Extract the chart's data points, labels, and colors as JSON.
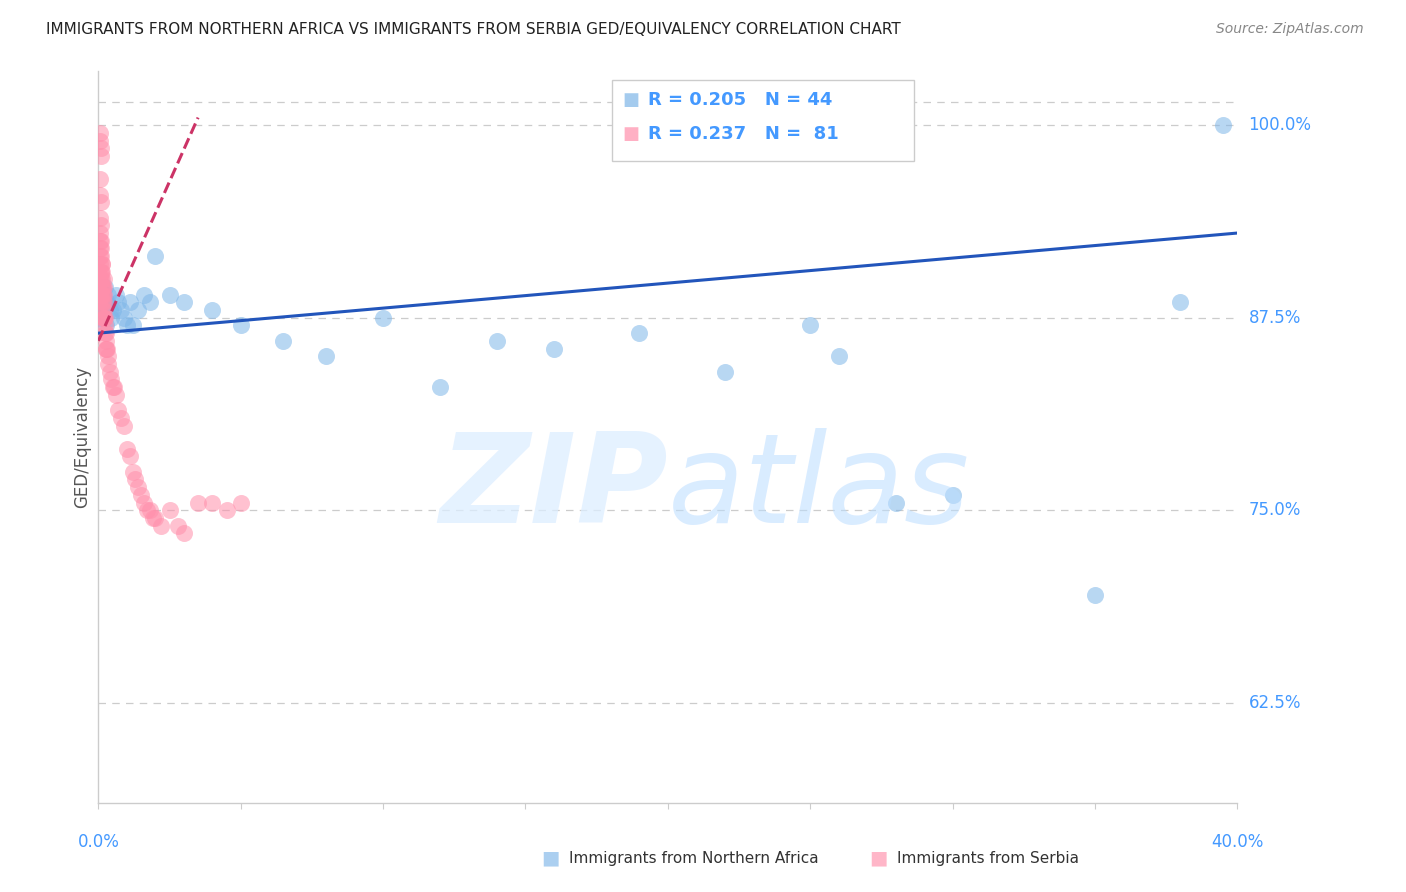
{
  "title": "IMMIGRANTS FROM NORTHERN AFRICA VS IMMIGRANTS FROM SERBIA GED/EQUIVALENCY CORRELATION CHART",
  "source": "Source: ZipAtlas.com",
  "ylabel": "GED/Equivalency",
  "color_blue": "#7EB6E8",
  "color_pink": "#FF8FAB",
  "color_trend_blue": "#2255BB",
  "color_trend_pink": "#CC3366",
  "color_axis_text": "#4499FF",
  "color_grid": "#CCCCCC",
  "color_title": "#222222",
  "legend_blue_r": "0.205",
  "legend_blue_n": "44",
  "legend_pink_r": "0.237",
  "legend_pink_n": "81",
  "legend_label_blue": "Immigrants from Northern Africa",
  "legend_label_pink": "Immigrants from Serbia",
  "xmin": 0.0,
  "xmax": 40.0,
  "ymin": 56.0,
  "ymax": 103.5,
  "yticks": [
    62.5,
    75.0,
    87.5,
    100.0
  ],
  "ytick_labels": [
    "62.5%",
    "75.0%",
    "87.5%",
    "100.0%"
  ],
  "blue_x": [
    0.05,
    0.08,
    0.12,
    0.15,
    0.18,
    0.2,
    0.22,
    0.25,
    0.28,
    0.3,
    0.35,
    0.4,
    0.45,
    0.5,
    0.6,
    0.7,
    0.8,
    0.9,
    1.0,
    1.1,
    1.2,
    1.4,
    1.6,
    1.8,
    2.0,
    2.5,
    3.0,
    4.0,
    5.0,
    6.5,
    8.0,
    10.0,
    12.0,
    14.0,
    16.0,
    19.0,
    22.0,
    26.0,
    30.0,
    35.0,
    38.0,
    39.5,
    25.0,
    28.0
  ],
  "blue_y": [
    87.5,
    88.0,
    88.5,
    89.0,
    88.0,
    87.5,
    89.5,
    88.5,
    87.0,
    88.5,
    89.0,
    88.0,
    87.5,
    88.0,
    89.0,
    88.5,
    88.0,
    87.5,
    87.0,
    88.5,
    87.0,
    88.0,
    89.0,
    88.5,
    91.5,
    89.0,
    88.5,
    88.0,
    87.0,
    86.0,
    85.0,
    87.5,
    83.0,
    86.0,
    85.5,
    86.5,
    84.0,
    85.0,
    76.0,
    69.5,
    88.5,
    100.0,
    87.0,
    75.5
  ],
  "pink_x": [
    0.03,
    0.04,
    0.04,
    0.05,
    0.05,
    0.05,
    0.06,
    0.06,
    0.07,
    0.07,
    0.07,
    0.08,
    0.08,
    0.08,
    0.09,
    0.09,
    0.1,
    0.1,
    0.1,
    0.1,
    0.11,
    0.11,
    0.12,
    0.12,
    0.13,
    0.13,
    0.14,
    0.14,
    0.15,
    0.15,
    0.16,
    0.16,
    0.17,
    0.18,
    0.18,
    0.19,
    0.2,
    0.2,
    0.2,
    0.21,
    0.22,
    0.23,
    0.24,
    0.25,
    0.26,
    0.27,
    0.28,
    0.3,
    0.32,
    0.35,
    0.4,
    0.45,
    0.5,
    0.55,
    0.6,
    0.7,
    0.8,
    0.9,
    1.0,
    1.1,
    1.2,
    1.3,
    1.4,
    1.5,
    1.6,
    1.7,
    1.8,
    1.9,
    2.0,
    2.2,
    2.5,
    2.8,
    3.0,
    3.5,
    4.0,
    4.5,
    5.0,
    0.06,
    0.07,
    0.08,
    0.1
  ],
  "pink_y": [
    88.5,
    89.0,
    91.0,
    92.5,
    94.0,
    95.5,
    91.5,
    93.0,
    90.0,
    92.0,
    96.5,
    90.5,
    92.5,
    95.0,
    90.0,
    91.5,
    89.0,
    90.5,
    92.0,
    93.5,
    89.5,
    91.0,
    89.0,
    91.0,
    89.5,
    90.5,
    88.5,
    90.0,
    88.0,
    89.5,
    88.5,
    89.0,
    87.5,
    88.5,
    89.5,
    87.5,
    88.0,
    89.0,
    90.0,
    87.5,
    87.0,
    86.5,
    87.5,
    86.5,
    86.0,
    85.5,
    85.5,
    85.5,
    85.0,
    84.5,
    84.0,
    83.5,
    83.0,
    83.0,
    82.5,
    81.5,
    81.0,
    80.5,
    79.0,
    78.5,
    77.5,
    77.0,
    76.5,
    76.0,
    75.5,
    75.0,
    75.0,
    74.5,
    74.5,
    74.0,
    75.0,
    74.0,
    73.5,
    75.5,
    75.5,
    75.0,
    75.5,
    99.5,
    99.0,
    98.5,
    98.0
  ]
}
